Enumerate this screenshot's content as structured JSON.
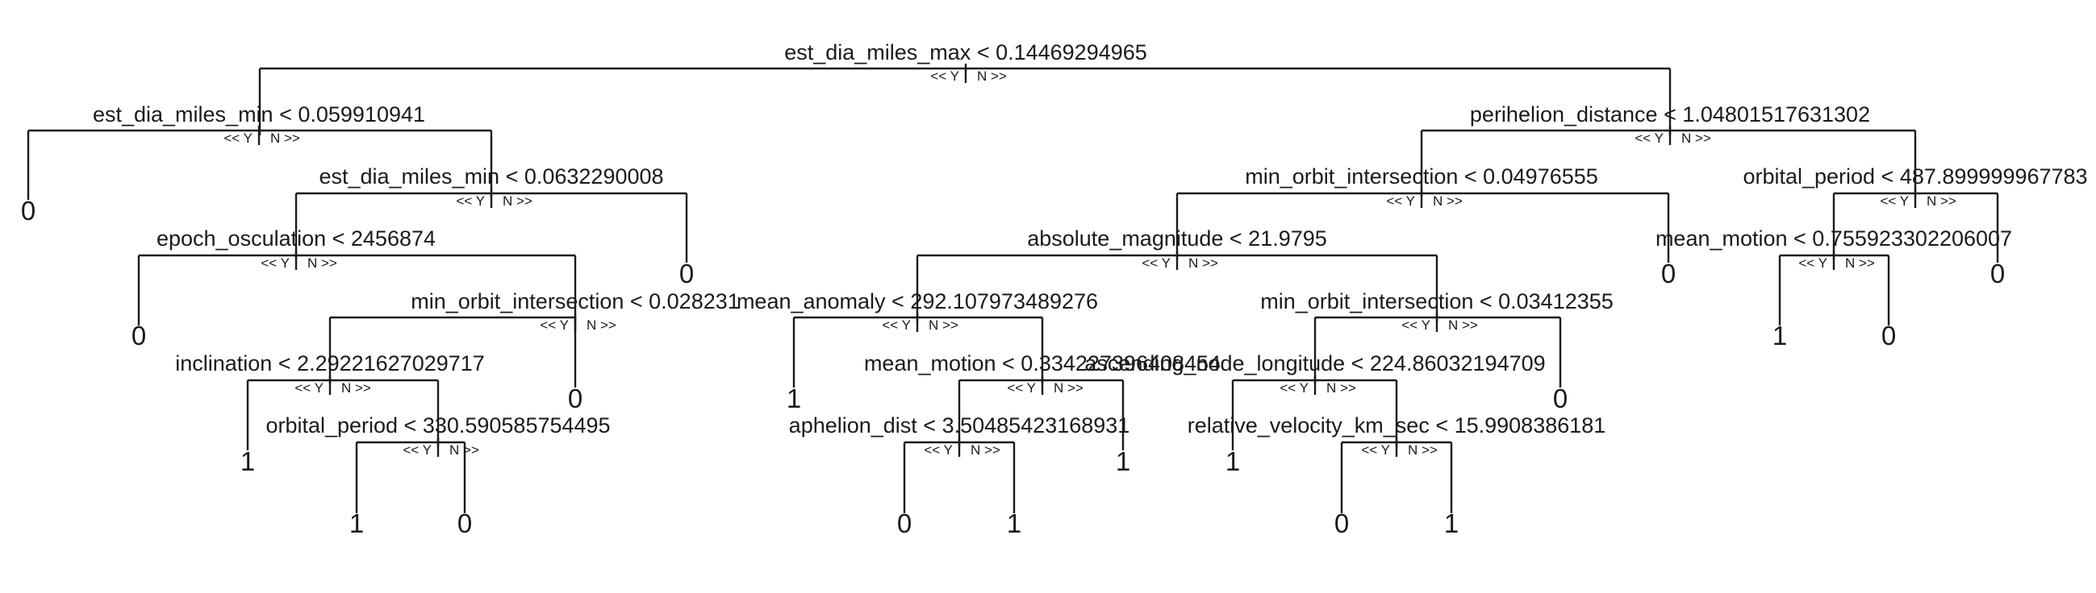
{
  "tree": {
    "yes_label": "<< Y",
    "no_label": "N >>",
    "splits": {
      "n0": "est_dia_miles_max < 0.14469294965",
      "n1": "est_dia_miles_min < 0.059910941",
      "n2": "est_dia_miles_min < 0.0632290008",
      "n3": "epoch_osculation < 2456874",
      "n4": "min_orbit_intersection < 0.028231",
      "n5": "inclination < 2.29221627029717",
      "n6": "orbital_period < 330.590585754495",
      "n7": "perihelion_distance < 1.04801517631302",
      "n8": "min_orbit_intersection < 0.04976555",
      "n9": "absolute_magnitude < 21.9795",
      "n10": "mean_anomaly < 292.107973489276",
      "n11": "mean_motion < 0.334227396408454",
      "n12": "aphelion_dist < 3.50485423168931",
      "n13": "min_orbit_intersection < 0.03412355",
      "n14": "ascending_node_longitude < 224.86032194709",
      "n15": "relative_velocity_km_sec < 15.9908386181",
      "n16": "orbital_period < 487.899999967783",
      "n17": "mean_motion < 0.755923302206007"
    },
    "leaves": {
      "l1": "0",
      "l2": "0",
      "l3": "0",
      "l4": "1",
      "l5": "1",
      "l6": "0",
      "l7": "0",
      "l8": "1",
      "l9": "0",
      "l10": "1",
      "l11": "1",
      "l12": "1",
      "l13": "0",
      "l14": "1",
      "l15": "0",
      "l16": "0",
      "l17": "0",
      "l18": "1",
      "l19": "0",
      "l20": "0"
    }
  }
}
